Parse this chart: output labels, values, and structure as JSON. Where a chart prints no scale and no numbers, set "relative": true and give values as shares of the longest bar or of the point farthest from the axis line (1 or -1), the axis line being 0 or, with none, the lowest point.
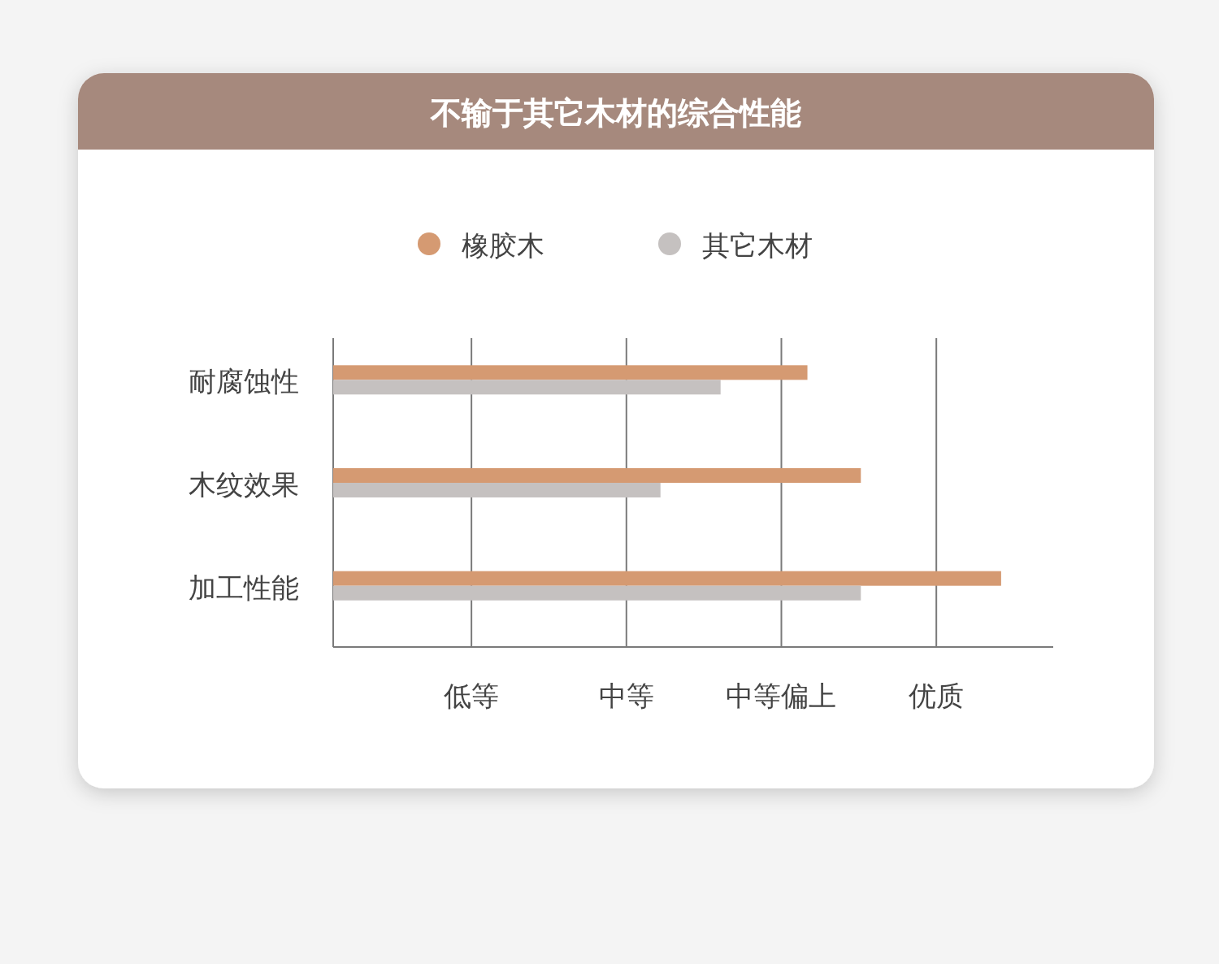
{
  "chart_data": {
    "type": "bar",
    "orientation": "horizontal",
    "relative": true,
    "title": "不输于其它木材的综合性能",
    "categories": [
      "耐腐蚀性",
      "木纹效果",
      "加工性能"
    ],
    "series": [
      {
        "name": "橡胶木",
        "color": "#d59a72",
        "values": [
          0.71,
          0.79,
          1
        ]
      },
      {
        "name": "其它木材",
        "color": "#c5c1c0",
        "values": [
          0.58,
          0.49,
          0.79
        ]
      }
    ],
    "annotations": [
      "低等",
      "中等",
      "中等偏上",
      "优质"
    ],
    "grid": "x",
    "legend": "top"
  }
}
